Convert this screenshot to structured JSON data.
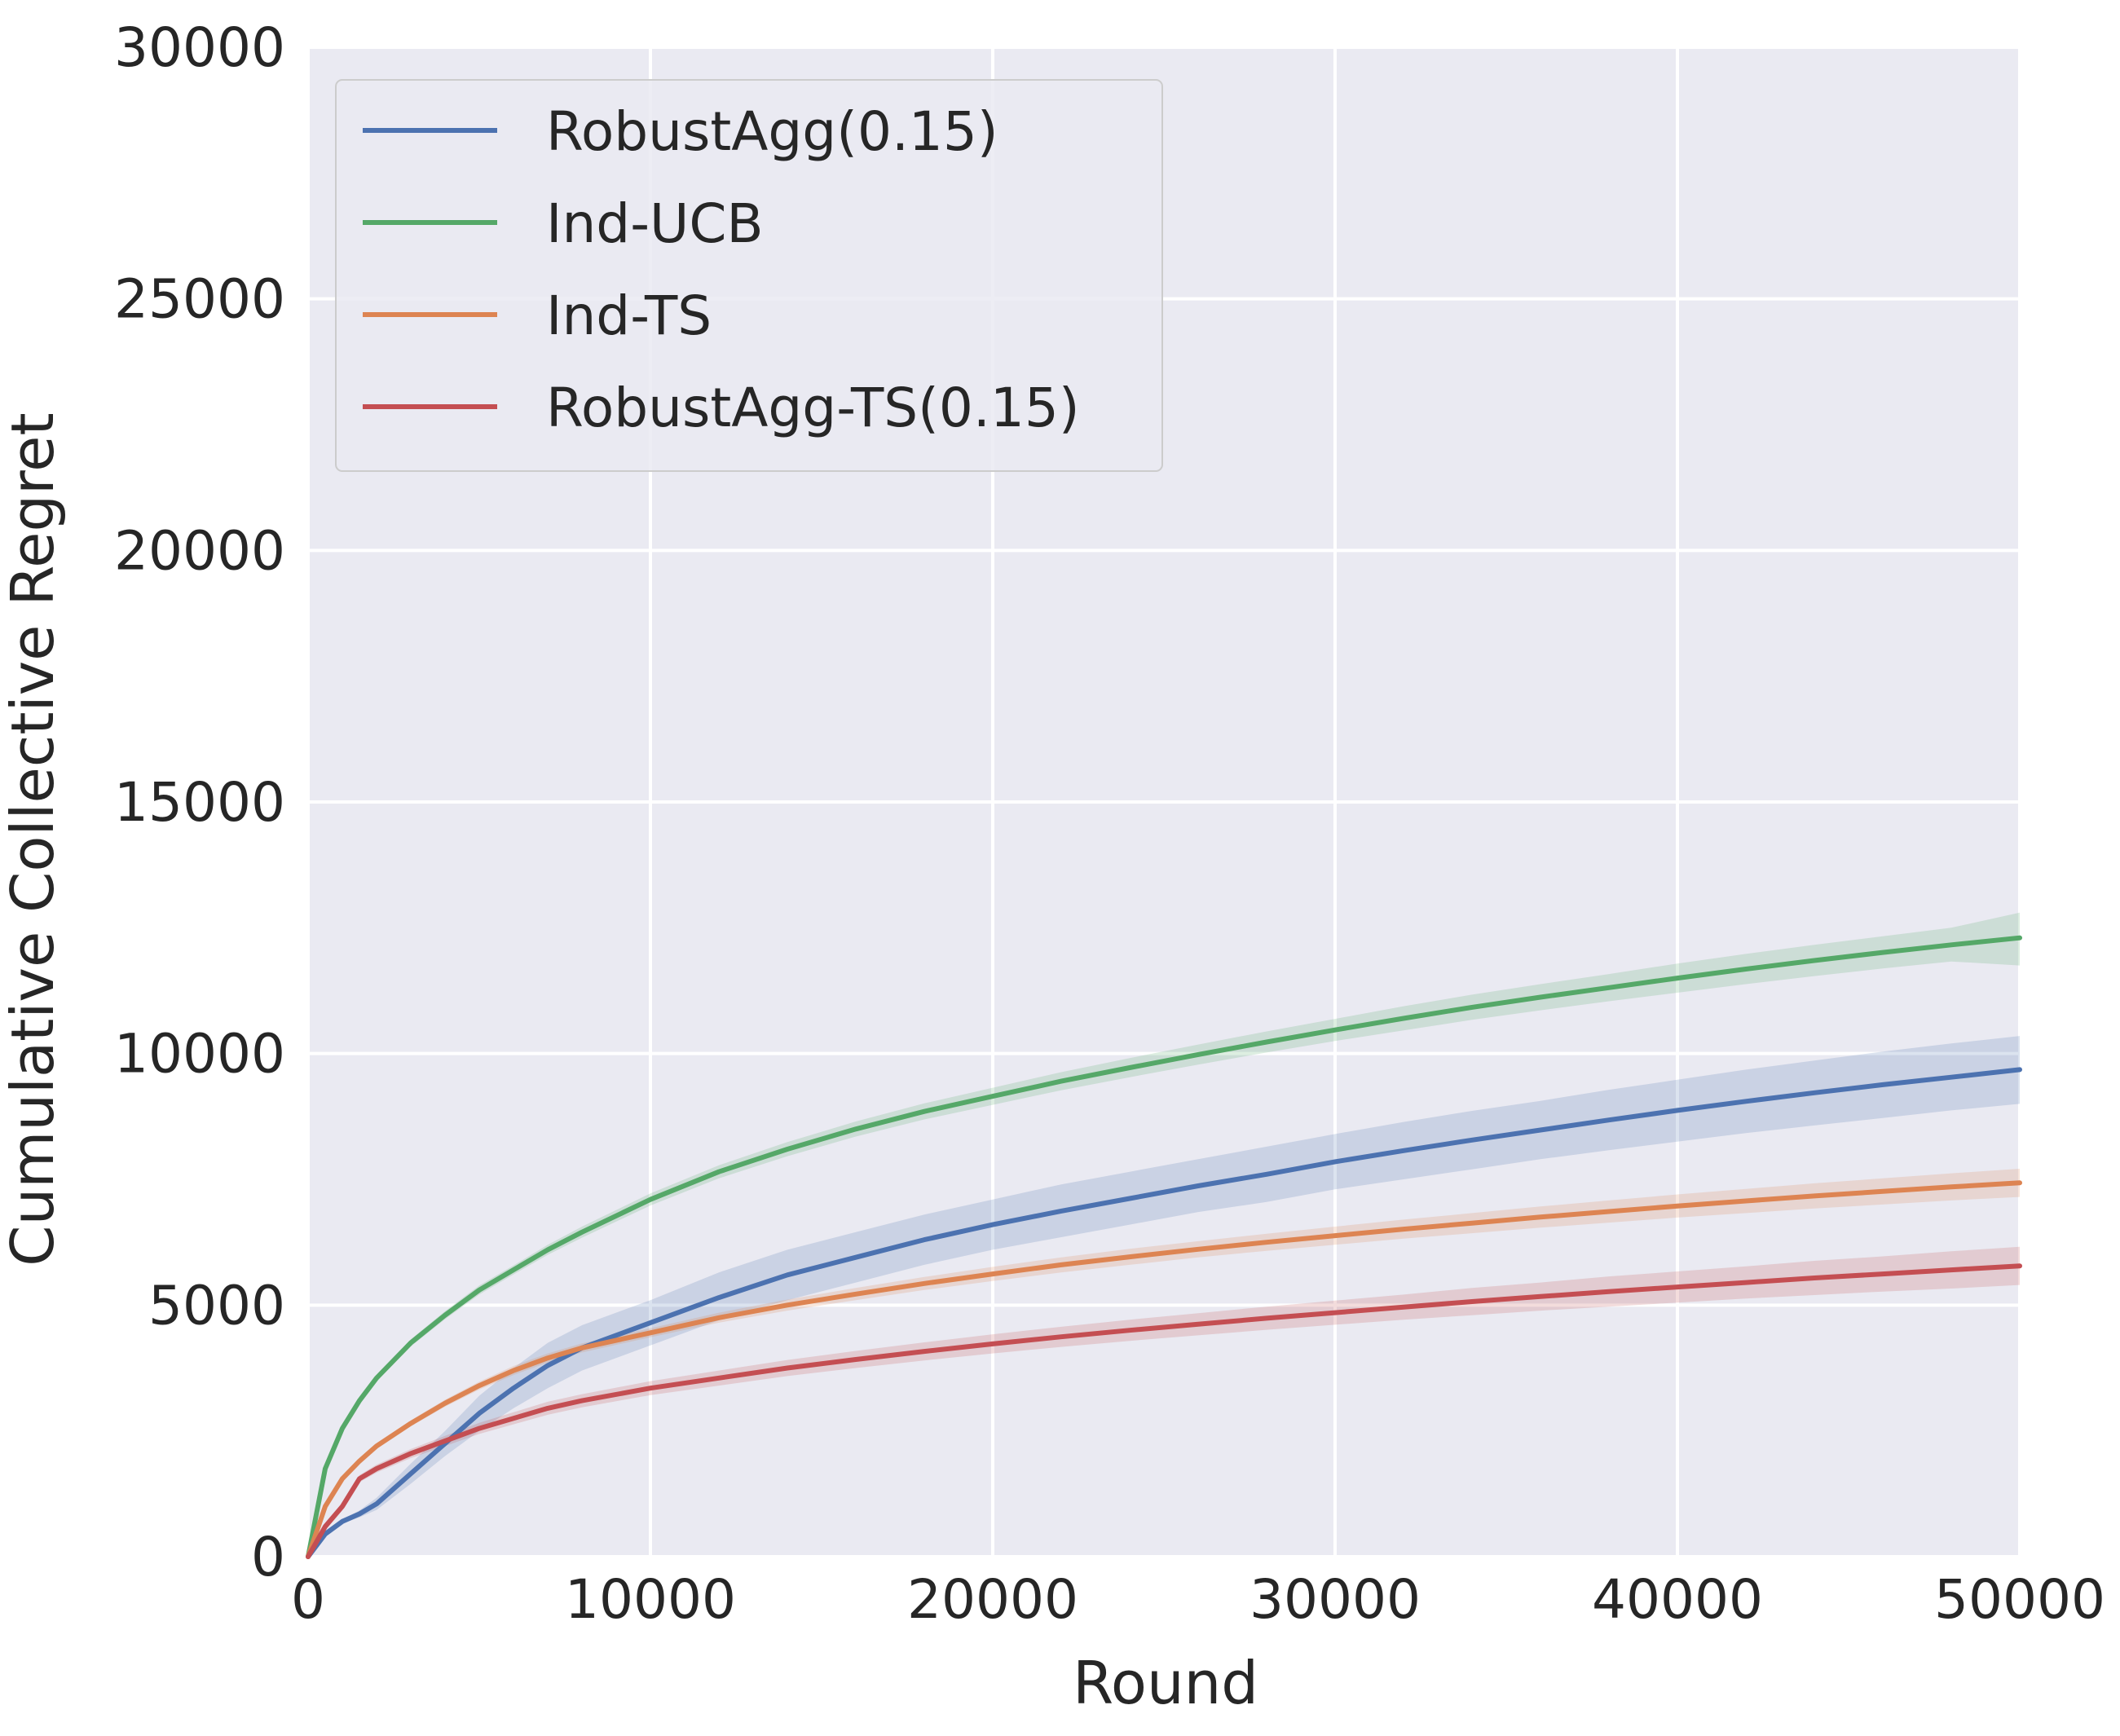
{
  "chart_data": {
    "type": "line",
    "title": "",
    "xlabel": "Round",
    "ylabel": "Cumulative Collective Regret",
    "xlim": [
      0,
      50000
    ],
    "ylim": [
      0,
      30000
    ],
    "xticks": [
      0,
      10000,
      20000,
      30000,
      40000,
      50000
    ],
    "yticks": [
      0,
      5000,
      10000,
      15000,
      20000,
      25000,
      30000
    ],
    "xtick_labels": [
      "0",
      "10000",
      "20000",
      "30000",
      "40000",
      "50000"
    ],
    "ytick_labels": [
      "0",
      "5000",
      "10000",
      "15000",
      "20000",
      "25000",
      "30000"
    ],
    "grid": true,
    "legend_position": "upper-left",
    "x": [
      0,
      500,
      1000,
      1500,
      2000,
      3000,
      4000,
      5000,
      6000,
      7000,
      8000,
      10000,
      12000,
      14000,
      16000,
      18000,
      20000,
      22000,
      24000,
      26000,
      28000,
      30000,
      32000,
      34000,
      36000,
      38000,
      40000,
      42000,
      44000,
      46000,
      48000,
      50000
    ],
    "series": [
      {
        "name": "RobustAgg(0.15)",
        "color": "#4c72b0",
        "values": [
          0,
          450,
          700,
          850,
          1050,
          1650,
          2250,
          2850,
          3350,
          3800,
          4150,
          4650,
          5150,
          5600,
          5950,
          6300,
          6600,
          6870,
          7120,
          7370,
          7600,
          7850,
          8070,
          8280,
          8480,
          8680,
          8870,
          9050,
          9220,
          9380,
          9530,
          9680
        ],
        "lower": [
          0,
          430,
          660,
          780,
          930,
          1450,
          2000,
          2500,
          2950,
          3350,
          3700,
          4200,
          4700,
          5100,
          5450,
          5800,
          6100,
          6350,
          6600,
          6850,
          7050,
          7300,
          7500,
          7700,
          7900,
          8080,
          8250,
          8420,
          8570,
          8720,
          8870,
          9000
        ],
        "upper": [
          0,
          470,
          740,
          920,
          1170,
          1850,
          2500,
          3200,
          3750,
          4250,
          4600,
          5100,
          5650,
          6100,
          6450,
          6800,
          7100,
          7400,
          7650,
          7900,
          8150,
          8400,
          8640,
          8860,
          9060,
          9280,
          9480,
          9680,
          9860,
          10040,
          10200,
          10350
        ]
      },
      {
        "name": "Ind-UCB",
        "color": "#55a868",
        "values": [
          0,
          1750,
          2550,
          3100,
          3550,
          4250,
          4800,
          5300,
          5700,
          6100,
          6450,
          7100,
          7650,
          8100,
          8500,
          8850,
          9150,
          9450,
          9720,
          9980,
          10230,
          10470,
          10700,
          10920,
          11120,
          11310,
          11500,
          11680,
          11850,
          12010,
          12160,
          12300
        ],
        "lower": [
          0,
          1720,
          2500,
          3050,
          3490,
          4180,
          4720,
          5210,
          5610,
          6000,
          6340,
          6980,
          7520,
          7960,
          8350,
          8690,
          8980,
          9270,
          9530,
          9780,
          10020,
          10250,
          10460,
          10670,
          10860,
          11040,
          11210,
          11380,
          11540,
          11690,
          11830,
          11750
        ],
        "upper": [
          0,
          1780,
          2600,
          3150,
          3610,
          4320,
          4880,
          5390,
          5790,
          6200,
          6560,
          7220,
          7780,
          8240,
          8650,
          9010,
          9320,
          9630,
          9910,
          10180,
          10440,
          10690,
          10940,
          11170,
          11380,
          11580,
          11790,
          11980,
          12160,
          12330,
          12500,
          12800
        ]
      },
      {
        "name": "Ind-TS",
        "color": "#dd8452",
        "values": [
          0,
          1000,
          1550,
          1900,
          2200,
          2650,
          3050,
          3400,
          3700,
          3950,
          4150,
          4450,
          4750,
          5000,
          5220,
          5430,
          5620,
          5800,
          5960,
          6110,
          6250,
          6380,
          6510,
          6630,
          6750,
          6860,
          6970,
          7070,
          7170,
          7260,
          7350,
          7430
        ],
        "lower": [
          0,
          980,
          1520,
          1860,
          2150,
          2590,
          2980,
          3320,
          3610,
          3860,
          4060,
          4360,
          4650,
          4890,
          5100,
          5300,
          5480,
          5650,
          5800,
          5950,
          6080,
          6200,
          6320,
          6430,
          6540,
          6640,
          6740,
          6830,
          6920,
          7000,
          7080,
          7150
        ],
        "upper": [
          0,
          1020,
          1580,
          1940,
          2250,
          2710,
          3120,
          3480,
          3790,
          4040,
          4240,
          4540,
          4850,
          5110,
          5340,
          5560,
          5760,
          5950,
          6120,
          6270,
          6420,
          6560,
          6700,
          6830,
          6960,
          7080,
          7200,
          7310,
          7420,
          7520,
          7620,
          7710
        ]
      },
      {
        "name": "RobustAgg-TS(0.15)",
        "color": "#c44e52",
        "values": [
          0,
          600,
          1000,
          1550,
          1750,
          2050,
          2300,
          2550,
          2750,
          2950,
          3100,
          3350,
          3550,
          3750,
          3920,
          4080,
          4230,
          4370,
          4500,
          4620,
          4740,
          4850,
          4960,
          5070,
          5170,
          5270,
          5360,
          5450,
          5540,
          5620,
          5700,
          5780
        ],
        "lower": [
          0,
          570,
          950,
          1480,
          1670,
          1960,
          2200,
          2440,
          2630,
          2820,
          2970,
          3210,
          3400,
          3590,
          3750,
          3900,
          4040,
          4170,
          4290,
          4400,
          4510,
          4610,
          4710,
          4800,
          4890,
          4970,
          5050,
          5130,
          5200,
          5270,
          5330,
          5400
        ],
        "upper": [
          0,
          630,
          1050,
          1620,
          1830,
          2140,
          2400,
          2660,
          2870,
          3080,
          3230,
          3490,
          3700,
          3910,
          4090,
          4260,
          4420,
          4570,
          4710,
          4840,
          4970,
          5090,
          5210,
          5340,
          5450,
          5570,
          5670,
          5770,
          5880,
          5970,
          6070,
          6160
        ]
      }
    ]
  }
}
